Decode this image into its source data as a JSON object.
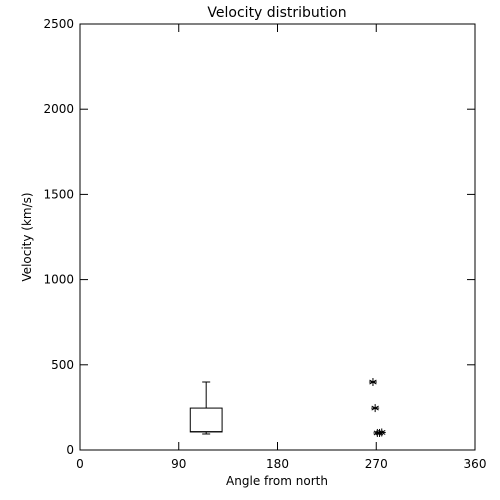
{
  "chart_data": {
    "type": "box",
    "title": "Velocity distribution",
    "x_label": "Angle from north",
    "y_label": "Velocity (km/s)",
    "xlim": [
      0,
      360
    ],
    "xticks": [
      0,
      90,
      180,
      270,
      360
    ],
    "ylim": [
      0,
      2500
    ],
    "yticks": [
      0,
      500,
      1000,
      1500,
      2000,
      2500
    ],
    "box": {
      "x": 115,
      "width": 29,
      "whisker_low": 94,
      "q1": 106,
      "median": 108,
      "q3": 246,
      "whisker_high": 399
    },
    "points": {
      "x": [
        267,
        269,
        271,
        273,
        275
      ],
      "y": [
        399,
        246,
        100,
        100,
        103
      ]
    },
    "color": "#000000"
  }
}
